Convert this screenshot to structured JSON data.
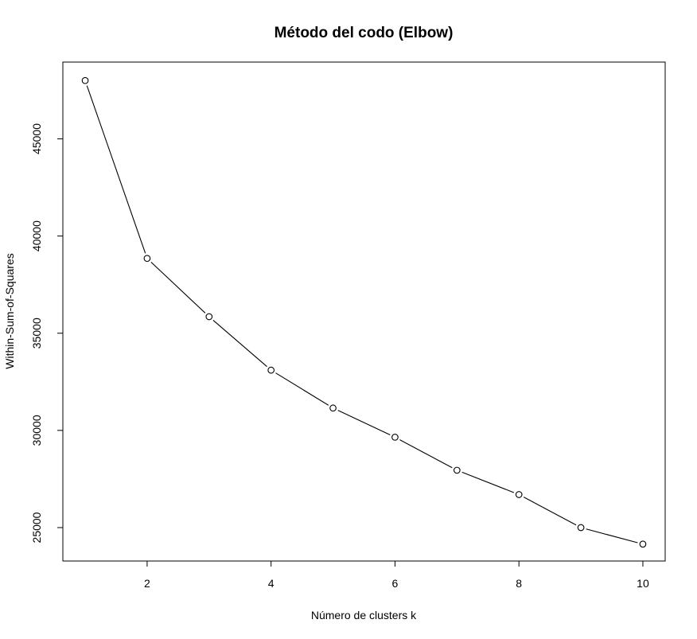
{
  "chart_data": {
    "type": "line",
    "title": "Método del codo (Elbow)",
    "xlabel": "Número de clusters k",
    "ylabel": "Within-Sum-of-Squares",
    "x": [
      1,
      2,
      3,
      4,
      5,
      6,
      7,
      8,
      9,
      10
    ],
    "series": [
      {
        "values": [
          48000,
          38850,
          35850,
          33100,
          31150,
          29650,
          27950,
          26700,
          25000,
          24150
        ]
      }
    ],
    "xlim": [
      0.64,
      10.36
    ],
    "ylim": [
      23280,
      48950
    ],
    "x_ticks": [
      2,
      4,
      6,
      8,
      10
    ],
    "y_ticks": [
      25000,
      30000,
      35000,
      40000,
      45000
    ],
    "grid": false,
    "legend": "none",
    "marker": "open-circle",
    "colors": {
      "line": "#000000",
      "marker_stroke": "#000000",
      "marker_fill": "#ffffff",
      "frame": "#000000",
      "text": "#000000"
    }
  }
}
